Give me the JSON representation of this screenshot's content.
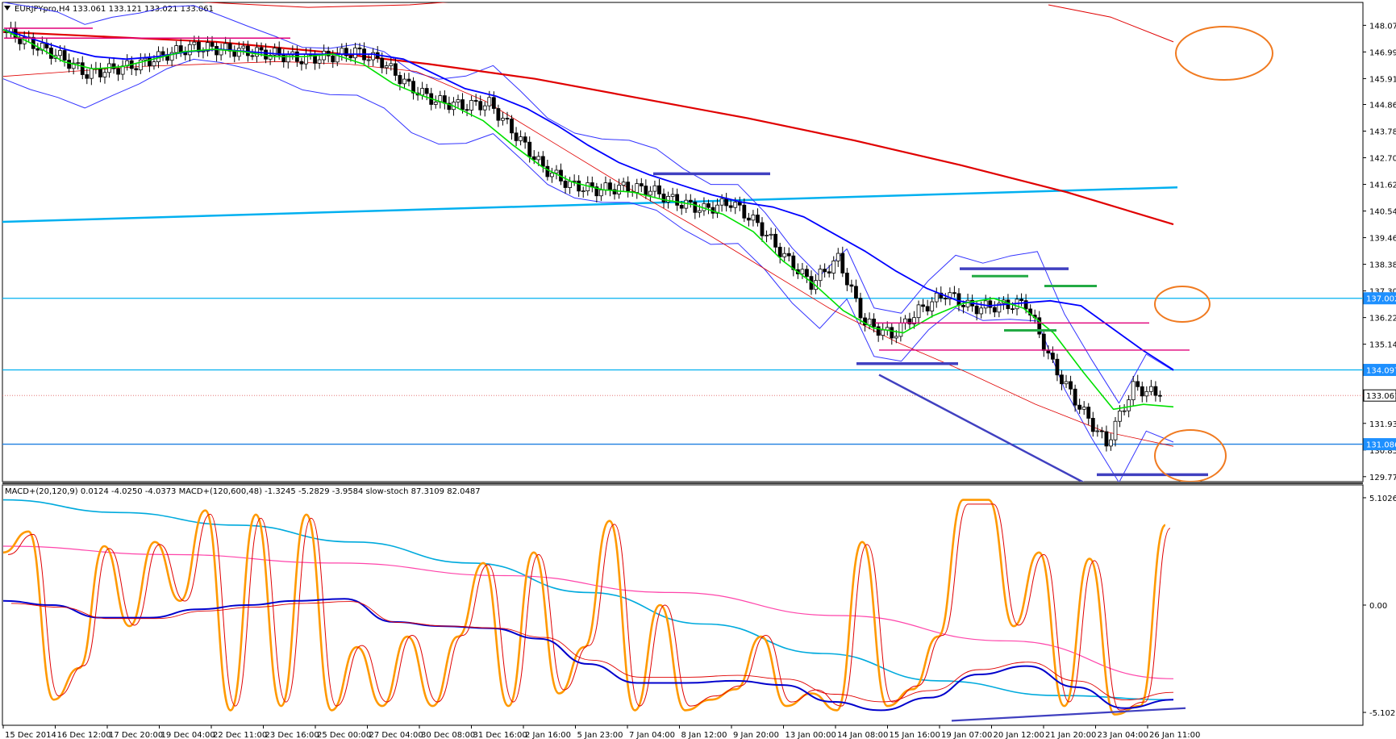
{
  "header": {
    "main_title": "EURJPYpro,H4  133.061 133.121 133.021 133.061",
    "indicator_title": "MACD+(20,120,9) 0.0124 -4.0250 -4.0373   MACD+(120,600,48) -1.3245 -5.2829 -3.9584   slow-stoch 87.3109 82.0487"
  },
  "colors": {
    "background": "#ffffff",
    "grid": "#000000",
    "bull_candle": "#ffffff",
    "bear_candle": "#000000",
    "ema_fast": "#00e000",
    "ema_slow": "#0000ff",
    "bollinger": "#3333ff",
    "ma_long": "#e00000",
    "trendline_cyan": "#00b0f0",
    "price_line_label_bg": "#1e90ff",
    "resistance_blue": "#4040c0",
    "support_green": "#22aa44",
    "magenta": "#e0007a",
    "orange_circle": "#f07a20",
    "stoch_orange": "#ff9900",
    "stoch_signal": "#e00000",
    "macd_blue": "#0000cc",
    "macd_cyan": "#00aadd",
    "macd_pink": "#ff44aa"
  },
  "chart_data": [
    {
      "type": "candlestick",
      "symbol": "EURJPYpro",
      "timeframe": "H4",
      "y_ticks": [
        "148.070",
        "146.990",
        "145.910",
        "144.860",
        "143.780",
        "142.700",
        "141.620",
        "140.540",
        "139.460",
        "138.380",
        "137.300",
        "136.220",
        "135.140",
        "133.061",
        "131.930",
        "130.850",
        "129.770"
      ],
      "price_labels": [
        {
          "text": "137.002",
          "value": 137.002
        },
        {
          "text": "134.097",
          "value": 134.097
        },
        {
          "text": "133.061",
          "value": 133.061
        },
        {
          "text": "131.086",
          "value": 131.086
        }
      ],
      "ylim": [
        129.6,
        148.9
      ],
      "close_path": [
        147.8,
        147.3,
        146.8,
        146.1,
        146.3,
        146.5,
        146.9,
        147.2,
        147.1,
        147.0,
        146.9,
        146.7,
        146.8,
        147.0,
        146.6,
        145.6,
        145.0,
        144.8,
        144.9,
        143.6,
        142.3,
        141.6,
        141.4,
        141.5,
        141.4,
        140.9,
        140.6,
        140.9,
        140.0,
        138.7,
        137.6,
        138.6,
        136.0,
        135.5,
        136.5,
        137.2,
        136.6,
        136.7,
        136.8,
        134.3,
        132.6,
        131.1,
        133.4,
        133.061
      ],
      "x_tick_labels": [
        "15 Dec 2014",
        "16 Dec 12:00",
        "17 Dec 20:00",
        "19 Dec 04:00",
        "22 Dec 11:00",
        "23 Dec 16:00",
        "25 Dec 00:00",
        "27 Dec 04:00",
        "30 Dec 08:00",
        "31 Dec 16:00",
        "2 Jan 16:00",
        "5 Jan 23:00",
        "7 Jan 04:00",
        "8 Jan 12:00",
        "9 Jan 20:00",
        "13 Jan 00:00",
        "14 Jan 08:00",
        "15 Jan 16:00",
        "19 Jan 07:00",
        "20 Jan 12:00",
        "21 Jan 20:00",
        "23 Jan 04:00",
        "26 Jan 11:00"
      ],
      "ema_slow_path": [
        147.9,
        147.5,
        147.1,
        146.8,
        146.7,
        146.8,
        147.0,
        147.1,
        147.0,
        146.9,
        146.9,
        146.9,
        146.9,
        146.7,
        146.1,
        145.5,
        145.2,
        144.7,
        144.0,
        143.2,
        142.5,
        142.0,
        141.6,
        141.2,
        140.9,
        140.7,
        140.3,
        139.6,
        138.9,
        138.1,
        137.4,
        136.9,
        136.7,
        136.8,
        136.9,
        136.7,
        135.8,
        134.9,
        134.1
      ],
      "ema_fast_path": [
        147.9,
        147.3,
        146.6,
        146.3,
        146.4,
        146.7,
        147.0,
        147.1,
        147.0,
        146.8,
        146.8,
        146.9,
        146.5,
        145.7,
        145.2,
        144.8,
        144.2,
        143.2,
        142.3,
        141.7,
        141.4,
        141.3,
        141.0,
        140.8,
        140.4,
        139.7,
        138.5,
        137.6,
        136.5,
        135.8,
        135.6,
        136.3,
        136.8,
        137.0,
        136.6,
        135.6,
        134.0,
        132.5,
        132.7,
        132.6
      ],
      "ma_long_path": [
        147.8,
        147.6,
        147.4,
        147.0,
        146.5,
        145.9,
        145.1,
        144.3,
        143.4,
        142.4,
        141.3,
        140.0
      ],
      "trendline_start_end": [
        [
          140.1
        ],
        [
          141.5
        ]
      ]
    },
    {
      "type": "line",
      "indicators": [
        "MACD+(20,120,9)",
        "MACD+(120,600,48)",
        "slow-stoch"
      ],
      "y_ticks": [
        "5.1026",
        "0.00",
        "-5.1026"
      ],
      "ylim": [
        -5.6,
        5.6
      ],
      "stoch_path": [
        2.5,
        3.5,
        -4.5,
        -3.0,
        2.8,
        -1.0,
        3.0,
        0.2,
        4.5,
        -5.0,
        4.3,
        -4.8,
        4.3,
        -5.0,
        -2.0,
        -4.8,
        -1.5,
        -4.8,
        -1.5,
        2.0,
        -4.8,
        2.5,
        -4.2,
        -2.0,
        4.0,
        -5.0,
        0.0,
        -5.0,
        -4.5,
        -4.0,
        -1.5,
        -4.8,
        -4.2,
        -5.0,
        3.0,
        -4.8,
        -4.0,
        -1.5,
        5.0,
        5.0,
        -1.0,
        2.5,
        -4.8,
        2.2,
        -5.2,
        -4.8,
        3.8
      ],
      "macd_path": [
        0.2,
        0.0,
        -0.6,
        -0.6,
        -0.2,
        0.0,
        0.2,
        0.3,
        -0.8,
        -1.0,
        -1.1,
        -1.6,
        -2.8,
        -3.7,
        -3.7,
        -3.6,
        -3.8,
        -4.6,
        -5.0,
        -4.4,
        -3.3,
        -2.9,
        -3.9,
        -4.9,
        -4.5
      ],
      "macd_long_path": [
        -2.3,
        -2.6,
        -2.9,
        -3.2,
        -3.6,
        -4.0,
        -4.5,
        -5.0
      ],
      "macd_pink_path": [
        2.8,
        2.4,
        2.0,
        1.4,
        0.6,
        -0.5,
        -1.7,
        -3.5
      ]
    }
  ]
}
